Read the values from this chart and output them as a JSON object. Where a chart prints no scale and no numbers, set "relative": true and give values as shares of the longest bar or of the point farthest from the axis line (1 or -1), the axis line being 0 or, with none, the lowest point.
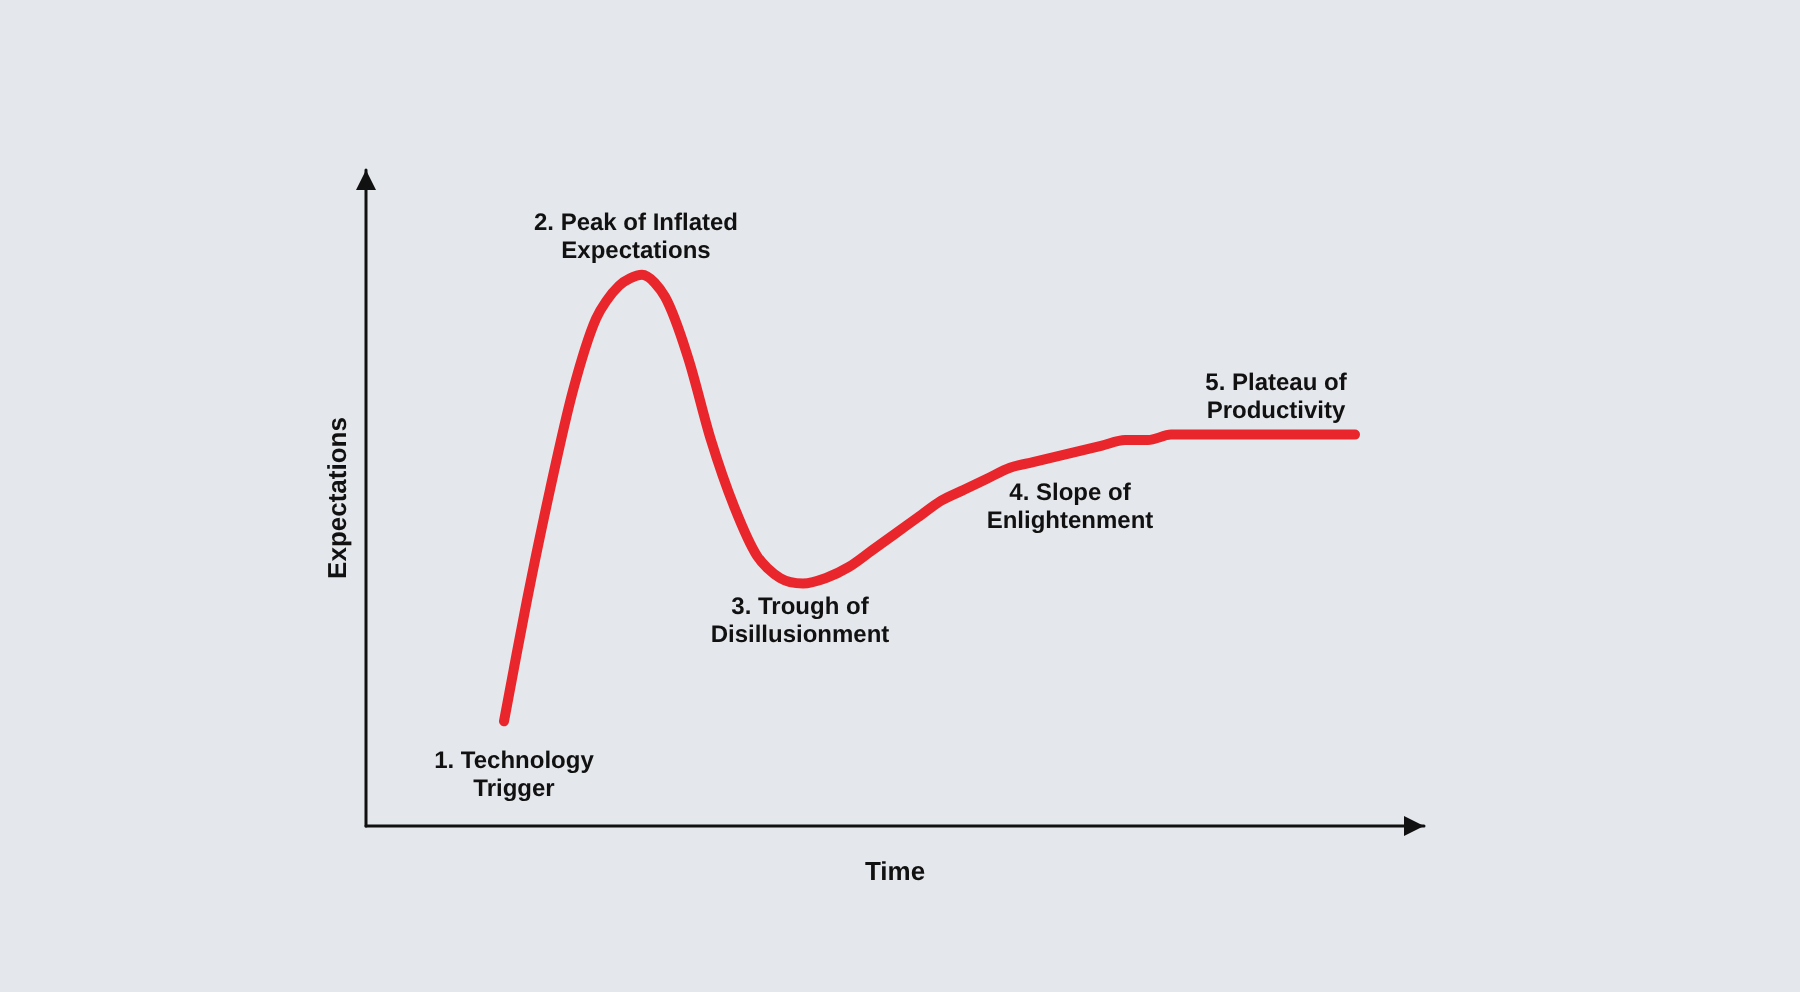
{
  "chart_data": {
    "type": "line",
    "relative": true,
    "xlabel": "Time",
    "ylabel": "Expectations",
    "categories": [
      null,
      null,
      null,
      null,
      null,
      null,
      null,
      null,
      null,
      null,
      null,
      null,
      null,
      null,
      null,
      null,
      null,
      null,
      null,
      null,
      null,
      null,
      null,
      null,
      null,
      null,
      null,
      null,
      null,
      null,
      null,
      null,
      null,
      null,
      null,
      null,
      null,
      null,
      null,
      null,
      null,
      null,
      null,
      null,
      null,
      null,
      null
    ],
    "series": [
      {
        "color": "#e8262b",
        "values": [
          null,
          null,
          null,
          null,
          null,
          null,
          0.19,
          0.41,
          0.61,
          0.79,
          0.92,
          0.98,
          1,
          0.96,
          0.85,
          0.7,
          0.58,
          0.49,
          0.45,
          0.44,
          0.45,
          0.47,
          0.5,
          0.53,
          0.56,
          0.59,
          0.61,
          0.63,
          0.65,
          0.66,
          0.67,
          0.68,
          0.69,
          0.7,
          0.7,
          0.71,
          0.71,
          0.71,
          0.71,
          0.71,
          0.71,
          0.71,
          0.71,
          0.71,
          null,
          null,
          null
        ]
      }
    ],
    "annotations": [
      "1. Technology Trigger",
      "2. Peak of Inflated Expectations",
      "3. Trough of Disillusionment",
      "4. Slope of Enlightenment",
      "5. Plateau of Productivity"
    ],
    "marker": "none",
    "line_style": "solid",
    "grid": false
  }
}
